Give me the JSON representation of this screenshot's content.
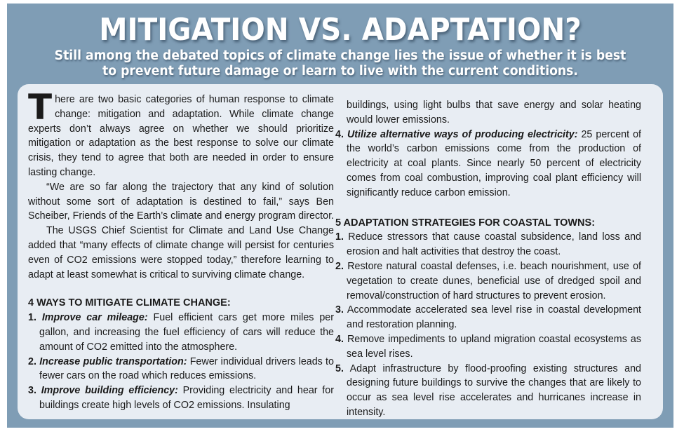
{
  "title": "MITIGATION VS. ADAPTATION?",
  "subtitle": "Still among the debated topics of climate change lies the issue of whether it is best to prevent future damage or learn to live with the current conditions.",
  "intro": {
    "dropcap": "T",
    "p1": "here are two basic categories of human response to climate change: mitigation and adaptation. While climate change experts don’t always agree on whether we should prioritize mitigation or adaptation as the best response to solve our climate crisis, they tend to agree that both are needed in order to ensure lasting change.",
    "p2": "“We are so far along the trajectory that any kind of solution without some sort of adaptation is destined to fail,” says Ben Scheiber, Friends of the Earth’s climate and energy program director.",
    "p3": "The USGS Chief Scientist for Climate and Land Use Change added that “many effects of climate change will persist for centuries even of CO2 emissions were stopped today,” therefore learning to adapt at least somewhat is critical to surviving climate change."
  },
  "mitigation": {
    "heading": "4 WAYS TO MITIGATE CLIMATE CHANGE:",
    "items": [
      {
        "num": "1.",
        "title": "Improve car mileage:",
        "text": " Fuel efficient cars get more miles per gallon, and increasing the fuel efficiency of cars will reduce the amount of CO2 emitted into the atmosphere."
      },
      {
        "num": "2.",
        "title": "Increase public transportation:",
        "text": " Fewer individual drivers leads to fewer cars on the road which reduces emissions."
      },
      {
        "num": "3.",
        "title": "Improve building efficiency:",
        "text": " Providing electricity and hear for buildings create high levels of CO2 emissions. Insulating",
        "continuation": "buildings, using light bulbs that save energy and solar heating would lower emissions."
      },
      {
        "num": "4.",
        "title": "Utilize alternative ways of producing electricity:",
        "text": " 25 percent of the world’s carbon emissions come from the production of electricity at coal plants. Since nearly 50 percent of electricity comes from coal combustion, improving coal plant efficiency will significantly reduce carbon emission."
      }
    ]
  },
  "adaptation": {
    "heading": "5 ADAPTATION STRATEGIES FOR COASTAL TOWNS:",
    "items": [
      {
        "num": "1.",
        "text": "Reduce stressors that cause coastal subsidence, land loss and erosion and halt activities that destroy the coast."
      },
      {
        "num": "2.",
        "text": "Restore natural coastal defenses, i.e. beach nourishment, use of vegetation to create dunes, beneficial use of dredged spoil and removal/construction of hard structures to prevent erosion."
      },
      {
        "num": "3.",
        "text": "Accommodate accelerated sea level rise in coastal development and restoration planning."
      },
      {
        "num": "4.",
        "text": "Remove impediments to upland migration coastal ecosystems as sea level rises."
      },
      {
        "num": "5.",
        "text": "Adapt infrastructure by flood-proofing existing structures and designing future buildings to survive the changes that are likely to occur as sea level rise accelerates and hurricanes increase in intensity."
      }
    ]
  }
}
